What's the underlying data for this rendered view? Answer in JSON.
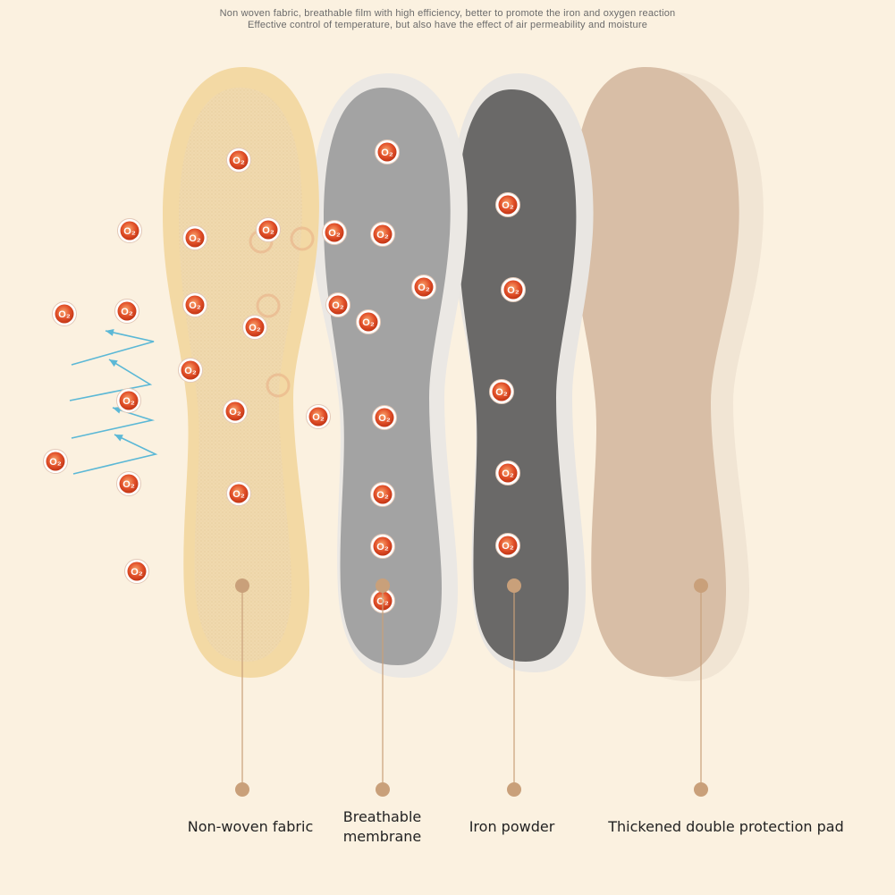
{
  "header": {
    "line1": "Non woven fabric, breathable film with high efficiency, better to promote the iron and oxygen reaction",
    "line2": "Effective control of temperature, but also have the effect of air permeability and moisture"
  },
  "layers": [
    {
      "label_line1": "Non-woven fabric",
      "label_line2": ""
    },
    {
      "label_line1": "Breathable",
      "label_line2": "membrane"
    },
    {
      "label_line1": "Iron powder",
      "label_line2": ""
    },
    {
      "label_line1": "Thickened double protection pad",
      "label_line2": ""
    }
  ],
  "particle_label": "O₂",
  "colors": {
    "background": "#fbf1e0",
    "fabric": "#f0d6a8",
    "membrane": "#a2a2a2",
    "iron": "#6a6968",
    "pad": "#d9bfa7",
    "particle": "#d9401e",
    "arrow": "#5bb8d6",
    "pointer": "#c9a07a"
  }
}
